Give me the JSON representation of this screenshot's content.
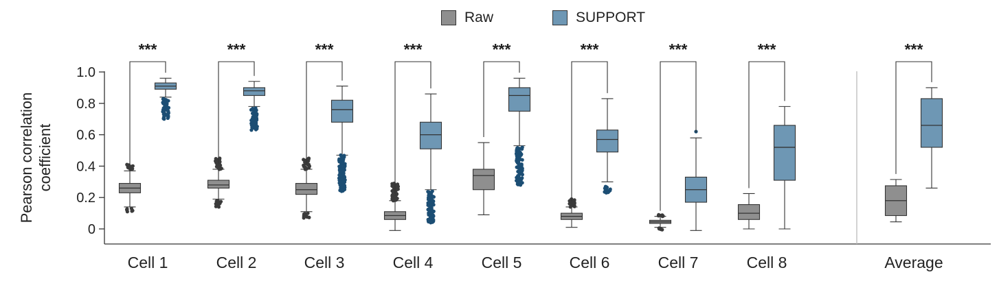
{
  "legend": [
    {
      "label": "Raw",
      "color": "#8f8f8f"
    },
    {
      "label": "SUPPORT",
      "color": "#6e97b4"
    }
  ],
  "colors": {
    "raw_fill": "#8f8f8f",
    "support_fill": "#6e97b4",
    "raw_outlier": "#3b3b3b",
    "support_outlier": "#1c4e74"
  },
  "chart_data": {
    "type": "box",
    "ylabel": "Pearson correlation\ncoefficient",
    "ylim": [
      -0.1,
      1.0
    ],
    "yticks": [
      0,
      0.2,
      0.4,
      0.6,
      0.8,
      1.0
    ],
    "ytick_labels": [
      "0",
      "0.2",
      "0.4",
      "0.6",
      "0.8",
      "1.0"
    ],
    "categories": [
      "Cell 1",
      "Cell 2",
      "Cell 3",
      "Cell 4",
      "Cell 5",
      "Cell 6",
      "Cell 7",
      "Cell 8",
      "Average"
    ],
    "significance": [
      "***",
      "***",
      "***",
      "***",
      "***",
      "***",
      "***",
      "***",
      "***"
    ],
    "series": [
      {
        "name": "Raw",
        "boxes": [
          {
            "whislo": 0.14,
            "q1": 0.23,
            "med": 0.26,
            "q3": 0.29,
            "whishi": 0.37,
            "outlier_range": [
              [
                0.11,
                0.13
              ],
              [
                0.38,
                0.41
              ]
            ]
          },
          {
            "whislo": 0.19,
            "q1": 0.26,
            "med": 0.28,
            "q3": 0.31,
            "whishi": 0.38,
            "outlier_range": [
              [
                0.14,
                0.18
              ],
              [
                0.38,
                0.45
              ]
            ]
          },
          {
            "whislo": 0.11,
            "q1": 0.22,
            "med": 0.25,
            "q3": 0.29,
            "whishi": 0.38,
            "outlier_range": [
              [
                0.07,
                0.1
              ],
              [
                0.38,
                0.45
              ]
            ]
          },
          {
            "whislo": -0.01,
            "q1": 0.06,
            "med": 0.085,
            "q3": 0.11,
            "whishi": 0.18,
            "outlier_range": [
              [
                0.18,
                0.29
              ]
            ]
          },
          {
            "whislo": 0.09,
            "q1": 0.25,
            "med": 0.34,
            "q3": 0.38,
            "whishi": 0.55,
            "outlier_range": []
          },
          {
            "whislo": 0.01,
            "q1": 0.06,
            "med": 0.08,
            "q3": 0.1,
            "whishi": 0.14,
            "outlier_range": [
              [
                0.14,
                0.19
              ]
            ]
          },
          {
            "whislo": 0.01,
            "q1": 0.035,
            "med": 0.045,
            "q3": 0.055,
            "whishi": 0.08,
            "outlier_range": [
              [
                -0.005,
                0.005
              ],
              [
                0.08,
                0.09
              ]
            ]
          },
          {
            "whislo": 0.0,
            "q1": 0.06,
            "med": 0.1,
            "q3": 0.155,
            "whishi": 0.225,
            "outlier_range": []
          },
          {
            "whislo": 0.045,
            "q1": 0.085,
            "med": 0.18,
            "q3": 0.275,
            "whishi": 0.315,
            "outlier_range": []
          }
        ]
      },
      {
        "name": "SUPPORT",
        "boxes": [
          {
            "whislo": 0.84,
            "q1": 0.89,
            "med": 0.91,
            "q3": 0.93,
            "whishi": 0.96,
            "outlier_range": [
              [
                0.7,
                0.83
              ]
            ]
          },
          {
            "whislo": 0.78,
            "q1": 0.85,
            "med": 0.88,
            "q3": 0.9,
            "whishi": 0.94,
            "outlier_range": [
              [
                0.63,
                0.77
              ]
            ]
          },
          {
            "whislo": 0.47,
            "q1": 0.68,
            "med": 0.76,
            "q3": 0.82,
            "whishi": 0.91,
            "outlier_range": [
              [
                0.24,
                0.47
              ]
            ]
          },
          {
            "whislo": 0.25,
            "q1": 0.51,
            "med": 0.6,
            "q3": 0.68,
            "whishi": 0.86,
            "outlier_range": [
              [
                0.04,
                0.24
              ]
            ]
          },
          {
            "whislo": 0.53,
            "q1": 0.75,
            "med": 0.85,
            "q3": 0.9,
            "whishi": 0.96,
            "outlier_range": [
              [
                0.28,
                0.52
              ]
            ]
          },
          {
            "whislo": 0.3,
            "q1": 0.49,
            "med": 0.57,
            "q3": 0.63,
            "whishi": 0.83,
            "outlier_range": [
              [
                0.23,
                0.27
              ]
            ]
          },
          {
            "whislo": -0.01,
            "q1": 0.17,
            "med": 0.25,
            "q3": 0.33,
            "whishi": 0.58,
            "outlier_range": [
              [
                0.62,
                0.62
              ]
            ]
          },
          {
            "whislo": 0.0,
            "q1": 0.31,
            "med": 0.52,
            "q3": 0.66,
            "whishi": 0.78,
            "outlier_range": []
          },
          {
            "whislo": 0.26,
            "q1": 0.52,
            "med": 0.66,
            "q3": 0.83,
            "whishi": 0.9,
            "outlier_range": []
          }
        ]
      }
    ],
    "grid": false,
    "legend_position": "top-center",
    "separator_before": "Average"
  }
}
